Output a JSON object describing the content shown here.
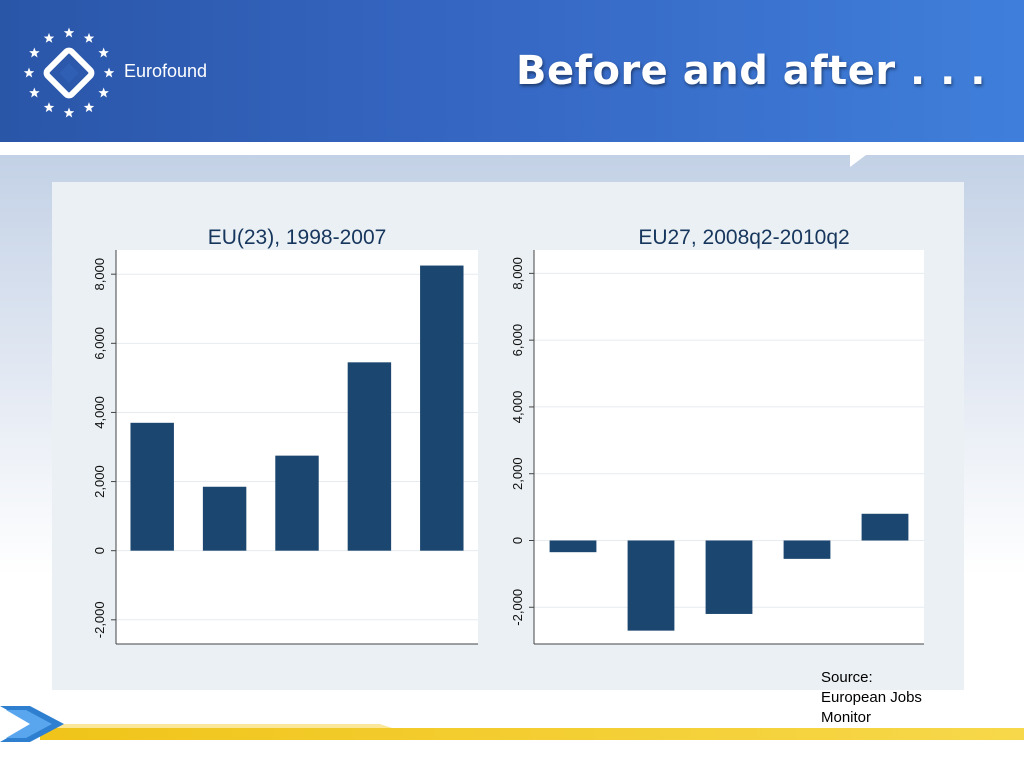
{
  "header": {
    "brand": "Eurofound",
    "title": "Before and after . . ."
  },
  "source": {
    "line1": "Source:",
    "line2": "European Jobs",
    "line3": "Monitor"
  },
  "colors": {
    "bar": "#1b466f",
    "header": "#3566c2",
    "panel": "#eaf0f3"
  },
  "chart_data": [
    {
      "type": "bar",
      "title": "EU(23), 1998-2007",
      "xlabel": "",
      "ylabel": "",
      "ylim": [
        -2700,
        8700
      ],
      "yticks": [
        -2000,
        0,
        2000,
        4000,
        6000,
        8000
      ],
      "ytick_labels": [
        "-2,000",
        "0",
        "2,000",
        "4,000",
        "6,000",
        "8,000"
      ],
      "values": [
        3700,
        1850,
        2750,
        5450,
        8250
      ],
      "grid": true
    },
    {
      "type": "bar",
      "title": "EU27, 2008q2-2010q2",
      "xlabel": "",
      "ylabel": "",
      "ylim": [
        -3100,
        8700
      ],
      "yticks": [
        -2000,
        0,
        2000,
        4000,
        6000,
        8000
      ],
      "ytick_labels": [
        "-2,000",
        "0",
        "2,000",
        "4,000",
        "6,000",
        "8,000"
      ],
      "values": [
        -350,
        -2700,
        -2200,
        -550,
        800
      ],
      "grid": true
    }
  ]
}
